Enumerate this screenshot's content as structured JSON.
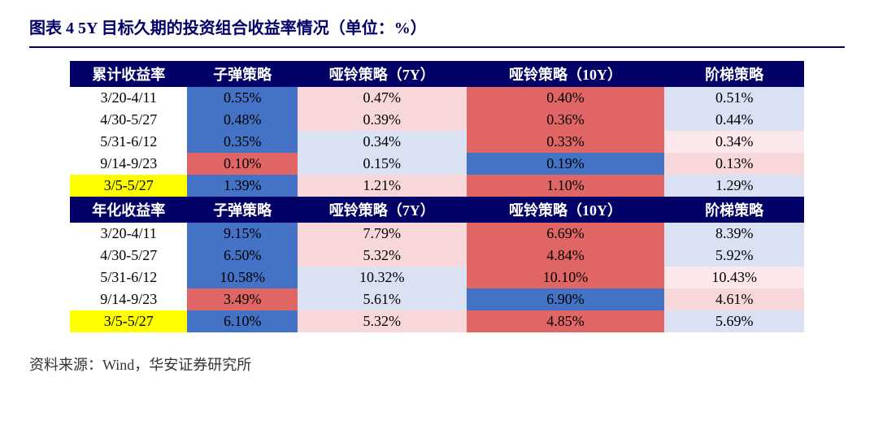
{
  "title": "图表 4 5Y 目标久期的投资组合收益率情况（单位：%）",
  "source": "资料来源：Wind，华安证券研究所",
  "colors": {
    "header_bg": "#000066",
    "header_fg": "#ffffff",
    "highlight_label_bg": "#ffff00",
    "deep_blue": "#4472c4",
    "mid_blue": "#8ea9db",
    "light_blue": "#d9e1f2",
    "deep_red": "#e06666",
    "mid_red": "#f4b0b0",
    "light_red": "#f8d7da",
    "pale_red": "#fce8ea"
  },
  "sections": [
    {
      "headers": [
        "累计收益率",
        "子弹策略",
        "哑铃策略（7Y）",
        "哑铃策略（10Y）",
        "阶梯策略"
      ],
      "rows": [
        {
          "label": "3/20-4/11",
          "hl": false,
          "cells": [
            {
              "v": "0.55%",
              "bg": "#4472c4"
            },
            {
              "v": "0.47%",
              "bg": "#f8d7da"
            },
            {
              "v": "0.40%",
              "bg": "#e06666"
            },
            {
              "v": "0.51%",
              "bg": "#d9e1f2"
            }
          ]
        },
        {
          "label": "4/30-5/27",
          "hl": false,
          "cells": [
            {
              "v": "0.48%",
              "bg": "#4472c4"
            },
            {
              "v": "0.39%",
              "bg": "#f8d7da"
            },
            {
              "v": "0.36%",
              "bg": "#e06666"
            },
            {
              "v": "0.44%",
              "bg": "#d9e1f2"
            }
          ]
        },
        {
          "label": "5/31-6/12",
          "hl": false,
          "cells": [
            {
              "v": "0.35%",
              "bg": "#4472c4"
            },
            {
              "v": "0.34%",
              "bg": "#d9e1f2"
            },
            {
              "v": "0.33%",
              "bg": "#e06666"
            },
            {
              "v": "0.34%",
              "bg": "#fce8ea"
            }
          ]
        },
        {
          "label": "9/14-9/23",
          "hl": false,
          "cells": [
            {
              "v": "0.10%",
              "bg": "#e06666"
            },
            {
              "v": "0.15%",
              "bg": "#d9e1f2"
            },
            {
              "v": "0.19%",
              "bg": "#4472c4"
            },
            {
              "v": "0.13%",
              "bg": "#f8d7da"
            }
          ]
        },
        {
          "label": "3/5-5/27",
          "hl": true,
          "cells": [
            {
              "v": "1.39%",
              "bg": "#4472c4"
            },
            {
              "v": "1.21%",
              "bg": "#f8d7da"
            },
            {
              "v": "1.10%",
              "bg": "#e06666"
            },
            {
              "v": "1.29%",
              "bg": "#d9e1f2"
            }
          ]
        }
      ]
    },
    {
      "headers": [
        "年化收益率",
        "子弹策略",
        "哑铃策略（7Y）",
        "哑铃策略（10Y）",
        "阶梯策略"
      ],
      "rows": [
        {
          "label": "3/20-4/11",
          "hl": false,
          "cells": [
            {
              "v": "9.15%",
              "bg": "#4472c4"
            },
            {
              "v": "7.79%",
              "bg": "#f8d7da"
            },
            {
              "v": "6.69%",
              "bg": "#e06666"
            },
            {
              "v": "8.39%",
              "bg": "#d9e1f2"
            }
          ]
        },
        {
          "label": "4/30-5/27",
          "hl": false,
          "cells": [
            {
              "v": "6.50%",
              "bg": "#4472c4"
            },
            {
              "v": "5.32%",
              "bg": "#f8d7da"
            },
            {
              "v": "4.84%",
              "bg": "#e06666"
            },
            {
              "v": "5.92%",
              "bg": "#d9e1f2"
            }
          ]
        },
        {
          "label": "5/31-6/12",
          "hl": false,
          "cells": [
            {
              "v": "10.58%",
              "bg": "#4472c4"
            },
            {
              "v": "10.32%",
              "bg": "#d9e1f2"
            },
            {
              "v": "10.10%",
              "bg": "#e06666"
            },
            {
              "v": "10.43%",
              "bg": "#fce8ea"
            }
          ]
        },
        {
          "label": "9/14-9/23",
          "hl": false,
          "cells": [
            {
              "v": "3.49%",
              "bg": "#e06666"
            },
            {
              "v": "5.61%",
              "bg": "#d9e1f2"
            },
            {
              "v": "6.90%",
              "bg": "#4472c4"
            },
            {
              "v": "4.61%",
              "bg": "#f8d7da"
            }
          ]
        },
        {
          "label": "3/5-5/27",
          "hl": true,
          "cells": [
            {
              "v": "6.10%",
              "bg": "#4472c4"
            },
            {
              "v": "5.32%",
              "bg": "#f8d7da"
            },
            {
              "v": "4.85%",
              "bg": "#e06666"
            },
            {
              "v": "5.69%",
              "bg": "#d9e1f2"
            }
          ]
        }
      ]
    }
  ]
}
